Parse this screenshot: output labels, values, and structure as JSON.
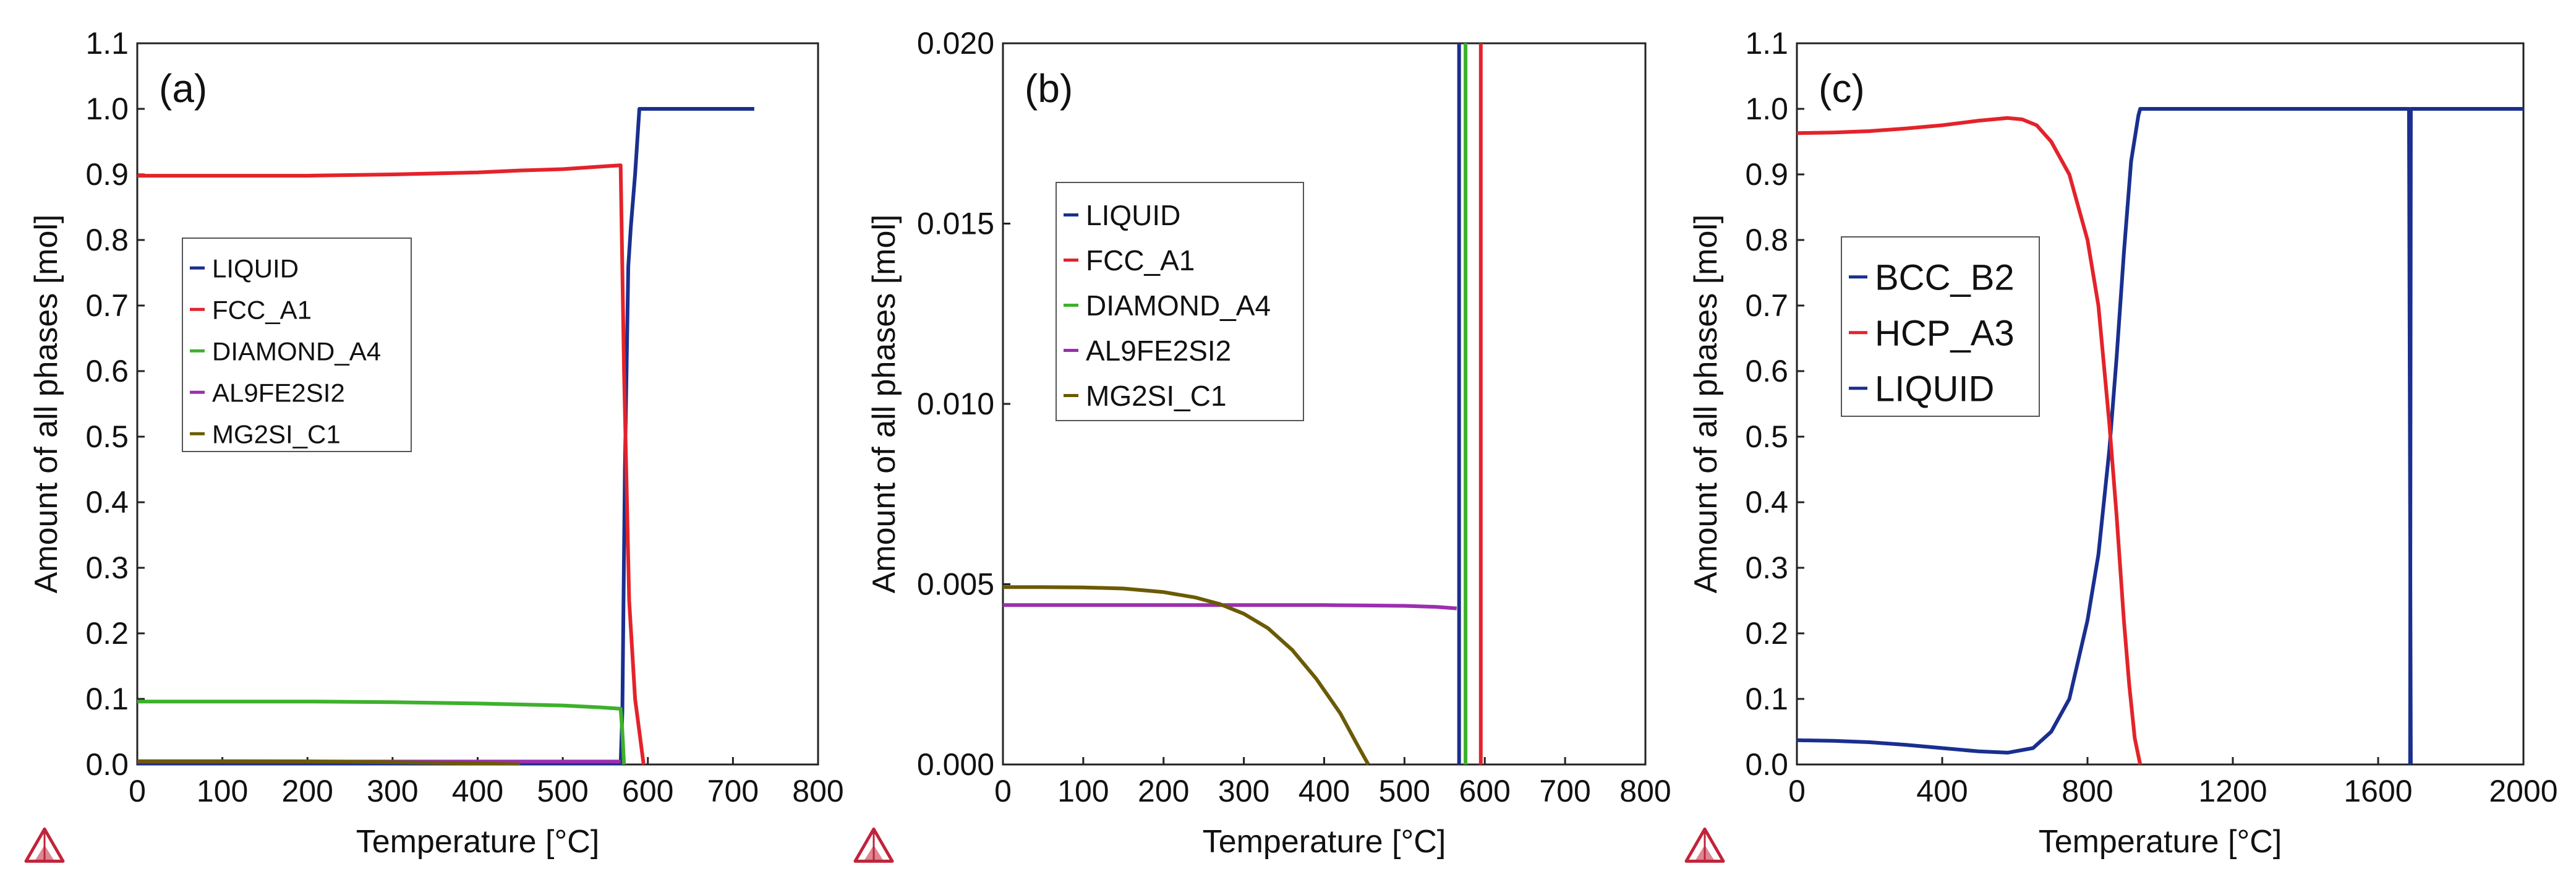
{
  "colors": {
    "LIQUID": "#1a2f8f",
    "FCC_A1": "#e3232a",
    "DIAMOND_A4": "#3db12b",
    "AL9FE2SI2": "#9b2fae",
    "MG2SI_C1": "#6b5a05",
    "BCC_B2": "#1a2f8f",
    "HCP_A3": "#e3232a",
    "logo": "#c0243a"
  },
  "chart_data": [
    {
      "type": "line",
      "panel_label": "(a)",
      "xlabel": "Temperature [°C]",
      "ylabel": "Amount of all phases [mol]",
      "xlim": [
        0,
        800
      ],
      "ylim": [
        0,
        1.1
      ],
      "xticks": [
        "0",
        "100",
        "200",
        "300",
        "400",
        "500",
        "600",
        "700",
        "800"
      ],
      "yticks": [
        "0.0",
        "0.1",
        "0.2",
        "0.3",
        "0.4",
        "0.5",
        "0.6",
        "0.7",
        "0.8",
        "0.9",
        "1.0",
        "1.1"
      ],
      "legend_position": "middle-left",
      "legend": [
        "LIQUID",
        "FCC_A1",
        "DIAMOND_A4",
        "AL9FE2SI2",
        "MG2SI_C1"
      ],
      "series": [
        {
          "name": "LIQUID",
          "x": [
            0,
            568,
            570,
            573,
            577,
            580,
            585,
            590,
            600,
            725
          ],
          "y": [
            0,
            0,
            0.08,
            0.45,
            0.76,
            0.82,
            0.9,
            1.0,
            1.0,
            1.0
          ]
        },
        {
          "name": "FCC_A1",
          "x": [
            0,
            100,
            200,
            300,
            400,
            450,
            500,
            545,
            568,
            572,
            578,
            585,
            595
          ],
          "y": [
            0.898,
            0.898,
            0.898,
            0.9,
            0.903,
            0.906,
            0.908,
            0.912,
            0.914,
            0.6,
            0.25,
            0.1,
            0
          ]
        },
        {
          "name": "DIAMOND_A4",
          "x": [
            0,
            100,
            200,
            300,
            400,
            500,
            545,
            568,
            570,
            572
          ],
          "y": [
            0.096,
            0.096,
            0.096,
            0.095,
            0.093,
            0.09,
            0.087,
            0.085,
            0.05,
            0
          ]
        },
        {
          "name": "AL9FE2SI2",
          "x": [
            0,
            100,
            200,
            300,
            400,
            500,
            568
          ],
          "y": [
            0.0045,
            0.0045,
            0.0045,
            0.0045,
            0.0045,
            0.0045,
            0.0045
          ]
        },
        {
          "name": "MG2SI_C1",
          "x": [
            0,
            100,
            200,
            300,
            400,
            450
          ],
          "y": [
            0.005,
            0.005,
            0.0048,
            0.0035,
            0.0015,
            0
          ]
        }
      ]
    },
    {
      "type": "line",
      "panel_label": "(b)",
      "xlabel": "Temperature [°C]",
      "ylabel": "Amount of all phases [mol]",
      "xlim": [
        0,
        800
      ],
      "ylim": [
        0,
        0.02
      ],
      "xticks": [
        "0",
        "100",
        "200",
        "300",
        "400",
        "500",
        "600",
        "700",
        "800"
      ],
      "yticks": [
        "0.000",
        "0.005",
        "0.010",
        "0.015",
        "0.020"
      ],
      "legend_position": "upper-left",
      "legend": [
        "LIQUID",
        "FCC_A1",
        "DIAMOND_A4",
        "AL9FE2SI2",
        "MG2SI_C1"
      ],
      "series": [
        {
          "name": "LIQUID",
          "x": [
            568,
            568
          ],
          "y": [
            0,
            0.02
          ]
        },
        {
          "name": "FCC_A1",
          "x": [
            595,
            595
          ],
          "y": [
            0,
            0.02
          ]
        },
        {
          "name": "DIAMOND_A4",
          "x": [
            576,
            576
          ],
          "y": [
            0,
            0.02
          ]
        },
        {
          "name": "AL9FE2SI2",
          "x": [
            0,
            100,
            200,
            300,
            400,
            450,
            500,
            540,
            565
          ],
          "y": [
            0.00442,
            0.00442,
            0.00442,
            0.00442,
            0.00442,
            0.00441,
            0.0044,
            0.00437,
            0.00433
          ]
        },
        {
          "name": "MG2SI_C1",
          "x": [
            0,
            50,
            100,
            150,
            200,
            240,
            270,
            300,
            330,
            360,
            390,
            420,
            440,
            455
          ],
          "y": [
            0.00492,
            0.00492,
            0.00491,
            0.00488,
            0.00478,
            0.00463,
            0.00445,
            0.00418,
            0.00378,
            0.00318,
            0.00238,
            0.00142,
            0.0006,
            0
          ]
        }
      ]
    },
    {
      "type": "line",
      "panel_label": "(c)",
      "xlabel": "Temperature [°C]",
      "ylabel": "Amount of all phases [mol]",
      "xlim": [
        0,
        2000
      ],
      "ylim": [
        0,
        1.1
      ],
      "xticks": [
        "0",
        "400",
        "800",
        "1200",
        "1600",
        "2000"
      ],
      "yticks": [
        "0.0",
        "0.1",
        "0.2",
        "0.3",
        "0.4",
        "0.5",
        "0.6",
        "0.7",
        "0.8",
        "0.9",
        "1.0",
        "1.1"
      ],
      "legend_position": "middle-left",
      "legend": [
        "BCC_B2",
        "HCP_A3",
        "LIQUID"
      ],
      "series": [
        {
          "name": "BCC_B2",
          "x": [
            0,
            100,
            200,
            300,
            400,
            500,
            580,
            650,
            700,
            750,
            800,
            830,
            860,
            880,
            900,
            920,
            940,
            945,
            1685,
            1690
          ],
          "y": [
            0.037,
            0.036,
            0.034,
            0.03,
            0.025,
            0.02,
            0.018,
            0.025,
            0.05,
            0.1,
            0.22,
            0.32,
            0.48,
            0.62,
            0.78,
            0.92,
            0.99,
            1.0,
            1.0,
            0
          ]
        },
        {
          "name": "HCP_A3",
          "x": [
            0,
            100,
            200,
            300,
            400,
            500,
            580,
            620,
            660,
            700,
            750,
            800,
            830,
            860,
            880,
            900,
            915,
            930,
            945
          ],
          "y": [
            0.963,
            0.964,
            0.966,
            0.97,
            0.975,
            0.982,
            0.986,
            0.984,
            0.975,
            0.95,
            0.9,
            0.8,
            0.7,
            0.52,
            0.38,
            0.22,
            0.12,
            0.04,
            0
          ]
        },
        {
          "name": "LIQUID",
          "x": [
            1688,
            1690,
            2000
          ],
          "y": [
            0,
            1.0,
            1.0
          ]
        }
      ]
    }
  ]
}
